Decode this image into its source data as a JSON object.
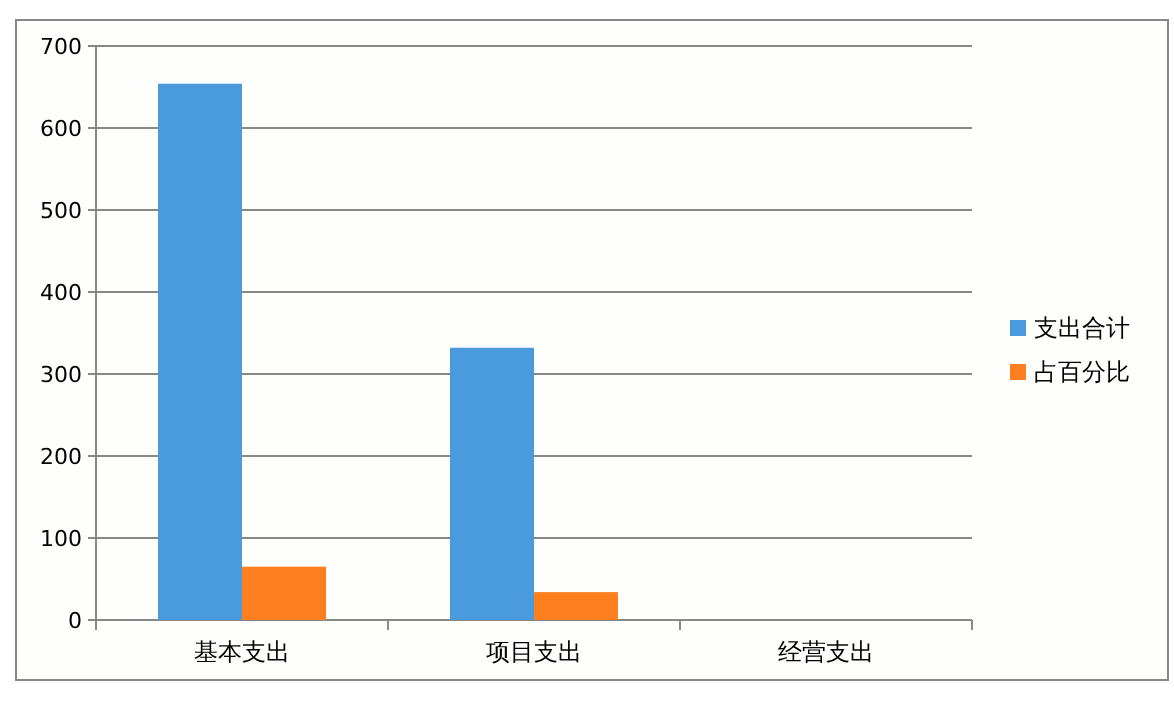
{
  "chart_data": {
    "type": "bar",
    "categories": [
      "基本支出",
      "项目支出",
      "经营支出"
    ],
    "series": [
      {
        "name": "支出合计",
        "color": "#4a9ade",
        "values": [
          654,
          332,
          0
        ]
      },
      {
        "name": "占百分比",
        "color": "#fd7f1d",
        "values": [
          65,
          34,
          0
        ]
      }
    ],
    "ylim": [
      0,
      700
    ],
    "yticks": [
      0,
      100,
      200,
      300,
      400,
      500,
      600,
      700
    ],
    "grid": "y",
    "legend": "right"
  }
}
